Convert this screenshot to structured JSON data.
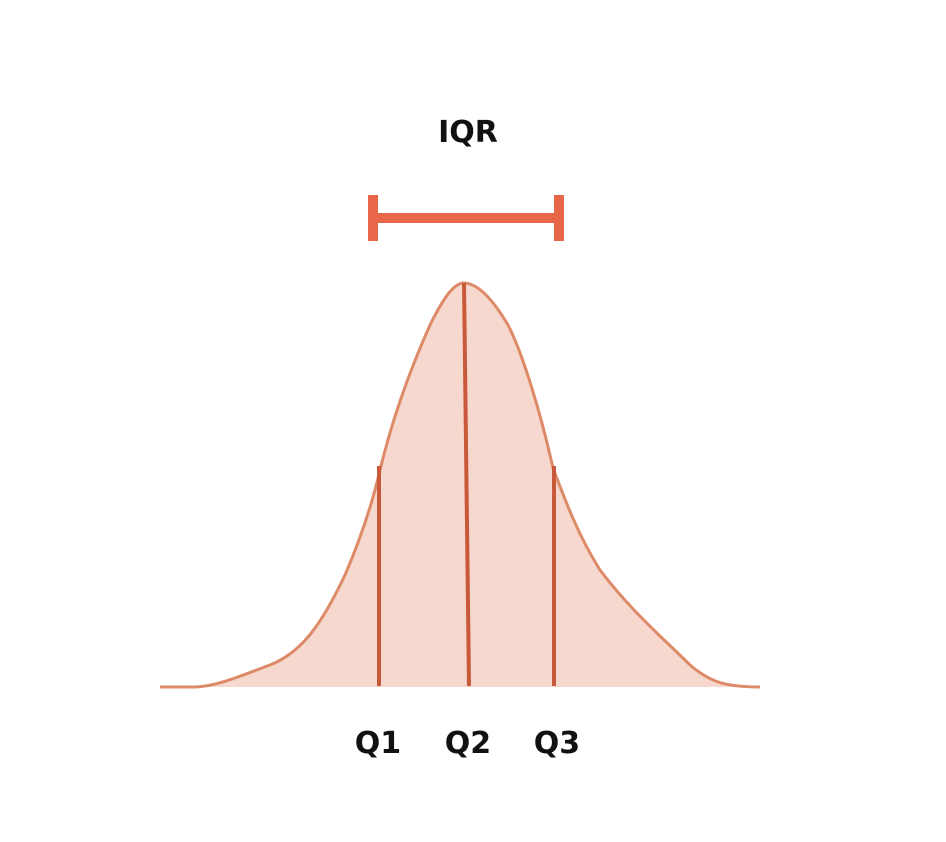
{
  "diagram": {
    "title": "IQR",
    "quartile_labels": {
      "q1": "Q1",
      "q2": "Q2",
      "q3": "Q3"
    }
  },
  "colors": {
    "curve_fill": "#f7d8ce",
    "curve_stroke": "#dd8a68",
    "quartile_lines": "#c8593a",
    "iqr_bracket": "#e8664a",
    "text": "#111111"
  }
}
